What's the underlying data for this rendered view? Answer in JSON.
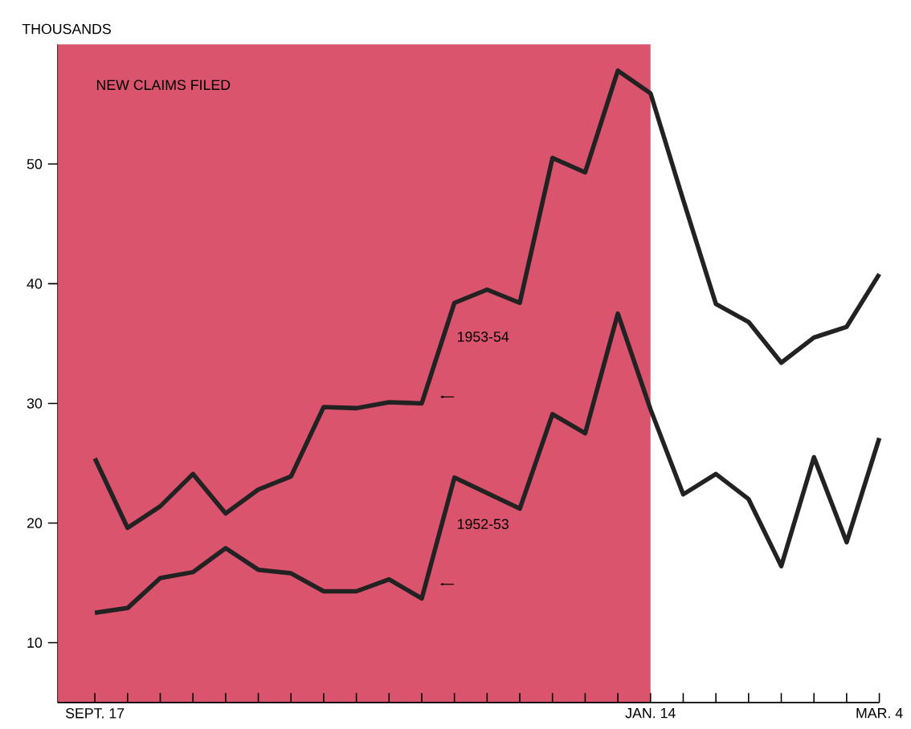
{
  "chart_data": {
    "type": "line",
    "title": "NEW CLAIMS FILED",
    "ylabel": "THOUSANDS",
    "x": [
      "1953-09-17",
      "1953-09-24",
      "1953-10-01",
      "1953-10-08",
      "1953-10-15",
      "1953-10-22",
      "1953-10-29",
      "1953-11-05",
      "1953-11-12",
      "1953-11-19",
      "1953-11-26",
      "1953-12-03",
      "1953-12-10",
      "1953-12-17",
      "1953-12-24",
      "1953-12-31",
      "1954-01-07",
      "1954-01-14",
      "1954-01-21",
      "1954-01-28",
      "1954-02-04",
      "1954-02-11",
      "1954-02-18",
      "1954-02-25",
      "1954-03-04"
    ],
    "series": [
      {
        "name": "1953-54",
        "color": "#222222",
        "values": [
          25.4,
          19.6,
          21.4,
          24.1,
          20.8,
          22.8,
          23.9,
          29.7,
          29.6,
          30.1,
          30.0,
          38.4,
          39.5,
          38.4,
          50.5,
          49.3,
          57.8,
          55.9,
          47.0,
          38.3,
          36.8,
          33.4,
          35.5,
          36.4,
          40.8
        ]
      },
      {
        "name": "1952-53",
        "color": "#222222",
        "values": [
          12.5,
          12.9,
          15.4,
          15.9,
          17.9,
          16.1,
          15.8,
          14.3,
          14.3,
          15.3,
          13.7,
          23.8,
          22.5,
          21.2,
          29.1,
          27.5,
          37.5,
          29.5,
          22.4,
          24.1,
          22.0,
          16.4,
          25.5,
          18.4,
          27.1
        ]
      }
    ],
    "xlim": [
      "1953-09-09",
      "1954-03-04"
    ],
    "xticks": [
      {
        "value": "1953-09-17",
        "label": "SEPT. 17"
      },
      {
        "value": "1953-09-24",
        "label": null
      },
      {
        "value": "1953-10-01",
        "label": null
      },
      {
        "value": "1953-10-08",
        "label": null
      },
      {
        "value": "1953-10-15",
        "label": null
      },
      {
        "value": "1953-10-22",
        "label": null
      },
      {
        "value": "1953-10-29",
        "label": null
      },
      {
        "value": "1953-11-05",
        "label": null
      },
      {
        "value": "1953-11-12",
        "label": null
      },
      {
        "value": "1953-11-19",
        "label": null
      },
      {
        "value": "1953-11-26",
        "label": null
      },
      {
        "value": "1953-12-03",
        "label": null
      },
      {
        "value": "1953-12-10",
        "label": null
      },
      {
        "value": "1953-12-17",
        "label": null
      },
      {
        "value": "1953-12-24",
        "label": null
      },
      {
        "value": "1953-12-31",
        "label": null
      },
      {
        "value": "1954-01-07",
        "label": null
      },
      {
        "value": "1954-01-14",
        "label": "JAN. 14"
      },
      {
        "value": "1954-01-21",
        "label": null
      },
      {
        "value": "1954-01-28",
        "label": null
      },
      {
        "value": "1954-02-04",
        "label": null
      },
      {
        "value": "1954-02-11",
        "label": null
      },
      {
        "value": "1954-02-18",
        "label": null
      },
      {
        "value": "1954-02-25",
        "label": null
      },
      {
        "value": "1954-03-04",
        "label": "MAR. 4"
      }
    ],
    "ylim": [
      5,
      60
    ],
    "yticks": [
      10,
      20,
      30,
      40,
      50
    ],
    "bands": [
      {
        "axis": "x",
        "from": "1953-09-09",
        "to": "1954-01-14",
        "color": "#d9546c"
      }
    ],
    "line_style": "solid"
  }
}
